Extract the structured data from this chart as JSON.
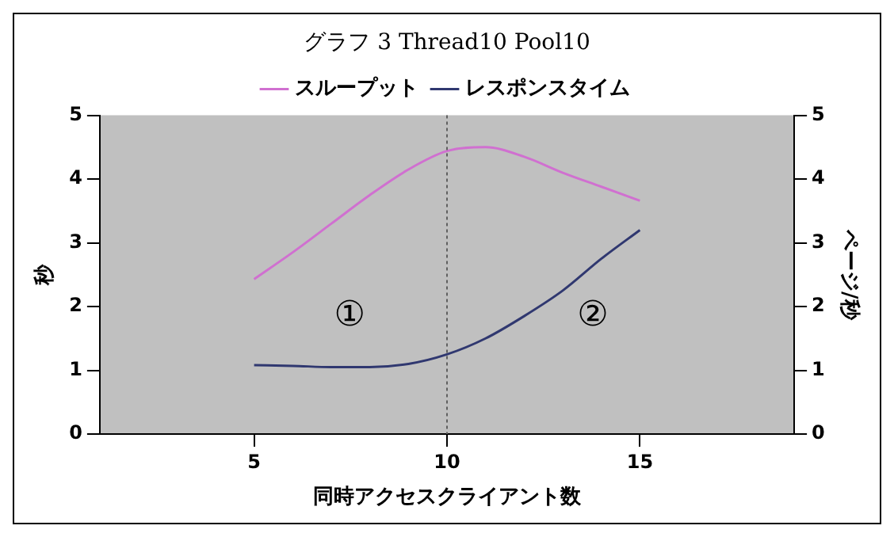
{
  "chart_data": {
    "type": "line",
    "title": "グラフ 3 Thread10 Pool10",
    "xlabel": "同時アクセスクライアント数",
    "ylabel": "秒",
    "y2label": "ページ/秒",
    "x": [
      5,
      6,
      7,
      8,
      9,
      10,
      11,
      12,
      13,
      14,
      15
    ],
    "series": [
      {
        "name": "スループット",
        "color": "#d070d0",
        "axis": "y2",
        "values": [
          2.43,
          2.85,
          3.3,
          3.75,
          4.15,
          4.44,
          4.5,
          4.35,
          4.1,
          3.88,
          3.66
        ]
      },
      {
        "name": "レスポンスタイム",
        "color": "#303870",
        "values": [
          1.08,
          1.07,
          1.05,
          1.05,
          1.1,
          1.25,
          1.5,
          1.85,
          2.25,
          2.75,
          3.2
        ]
      }
    ],
    "xlim": [
      1,
      19
    ],
    "xticks": [
      5,
      10,
      15
    ],
    "ylim": [
      0,
      5
    ],
    "yticks": [
      0,
      1,
      2,
      3,
      4,
      5
    ],
    "y2lim": [
      0,
      5
    ],
    "y2ticks": [
      0,
      1,
      2,
      3,
      4,
      5
    ],
    "ref_lines": [
      {
        "axis": "x",
        "value": 10,
        "color": "#606060",
        "line_style": "dotted"
      }
    ],
    "annotations": [
      "①",
      "②"
    ],
    "grid": false,
    "legend": "top",
    "marker": "none",
    "line_style": "solid"
  }
}
